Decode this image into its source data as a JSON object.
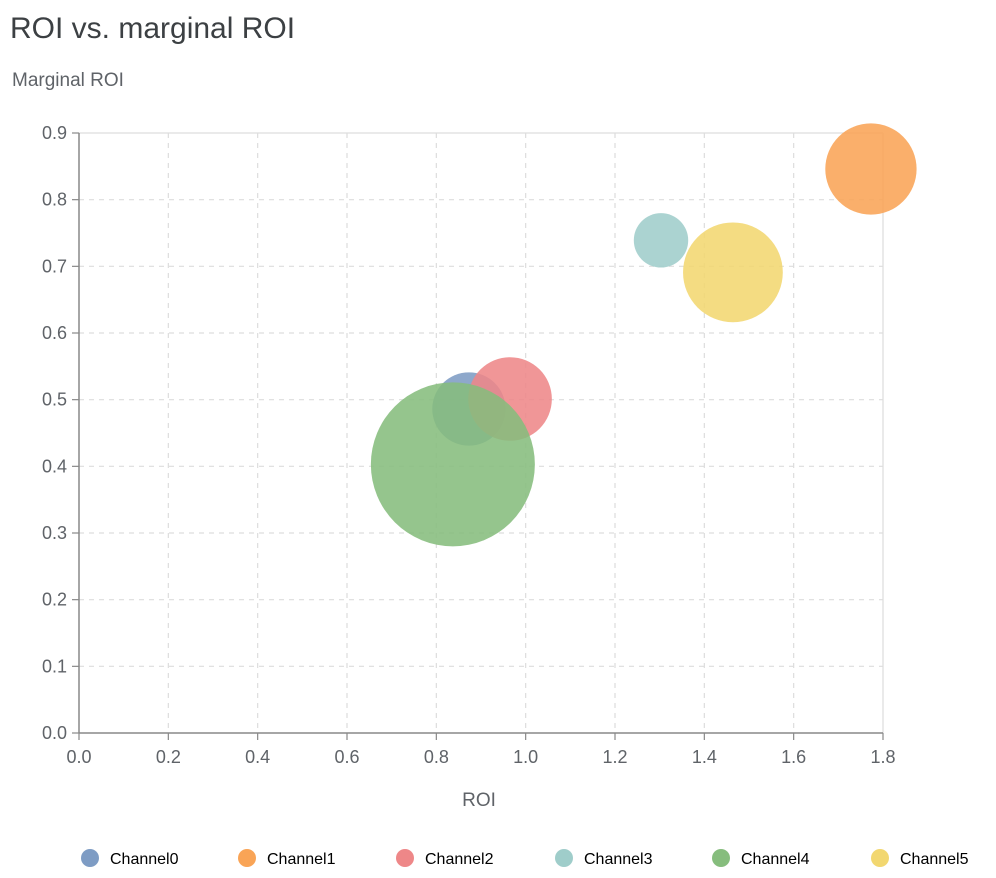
{
  "chart_data": {
    "type": "scatter",
    "title": "ROI vs. marginal ROI",
    "xlabel": "ROI",
    "ylabel": "Marginal ROI",
    "xlim": [
      0,
      1.8
    ],
    "ylim": [
      0,
      0.9
    ],
    "xticks": [
      "0.0",
      "0.2",
      "0.4",
      "0.6",
      "0.8",
      "1.0",
      "1.2",
      "1.4",
      "1.6",
      "1.8"
    ],
    "yticks": [
      "0.0",
      "0.1",
      "0.2",
      "0.3",
      "0.4",
      "0.5",
      "0.6",
      "0.7",
      "0.8",
      "0.9"
    ],
    "grid": true,
    "legend_position": "bottom",
    "series": [
      {
        "name": "Channel0",
        "x": 0.873,
        "y": 0.486,
        "size": 0.2,
        "color": "#7e9cc4"
      },
      {
        "name": "Channel1",
        "x": 1.773,
        "y": 0.846,
        "size": 0.31,
        "color": "#f9a456"
      },
      {
        "name": "Channel2",
        "x": 0.965,
        "y": 0.501,
        "size": 0.26,
        "color": "#ee8788"
      },
      {
        "name": "Channel3",
        "x": 1.303,
        "y": 0.739,
        "size": 0.11,
        "color": "#9fcdca"
      },
      {
        "name": "Channel4",
        "x": 0.837,
        "y": 0.403,
        "size": 1.0,
        "color": "#86bd7d"
      },
      {
        "name": "Channel5",
        "x": 1.464,
        "y": 0.691,
        "size": 0.37,
        "color": "#f2d770"
      }
    ]
  }
}
